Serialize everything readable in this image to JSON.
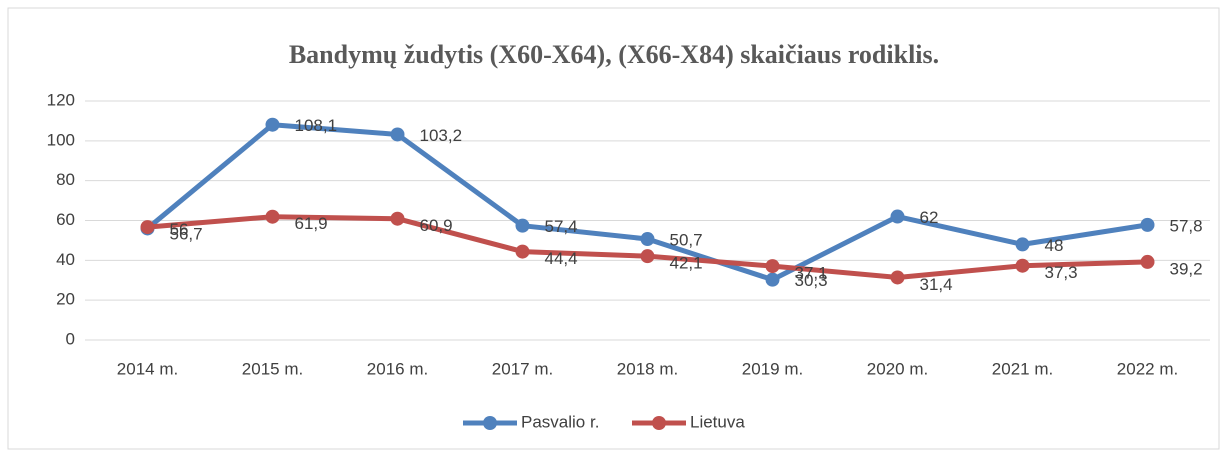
{
  "chart_data": {
    "type": "line",
    "title": "Bandymų žudytis (X60-X64), (X66-X84) skaičiaus rodiklis.",
    "categories": [
      "2014 m.",
      "2015 m.",
      "2016 m.",
      "2017 m.",
      "2018 m.",
      "2019 m.",
      "2020 m.",
      "2021 m.",
      "2022 m."
    ],
    "series": [
      {
        "name": "Pasvalio r.",
        "color": "#4f81bd",
        "values": [
          56,
          108.1,
          103.2,
          57.4,
          50.7,
          30.3,
          62,
          48,
          57.8
        ],
        "value_labels": [
          "56",
          "108,1",
          "103,2",
          "57,4",
          "50,7",
          "30,3",
          "62",
          "48",
          "57,8"
        ]
      },
      {
        "name": "Lietuva",
        "color": "#c0504d",
        "values": [
          56.7,
          61.9,
          60.9,
          44.4,
          42.1,
          37.1,
          31.4,
          37.3,
          39.2
        ],
        "value_labels": [
          "56,7",
          "61,9",
          "60,9",
          "44,4",
          "42,1",
          "37,1",
          "31,4",
          "37,3",
          "39,2"
        ]
      }
    ],
    "ylim": [
      0,
      120
    ],
    "yticks": [
      0,
      20,
      40,
      60,
      80,
      100,
      120
    ],
    "grid": true,
    "legend": "bottom"
  }
}
